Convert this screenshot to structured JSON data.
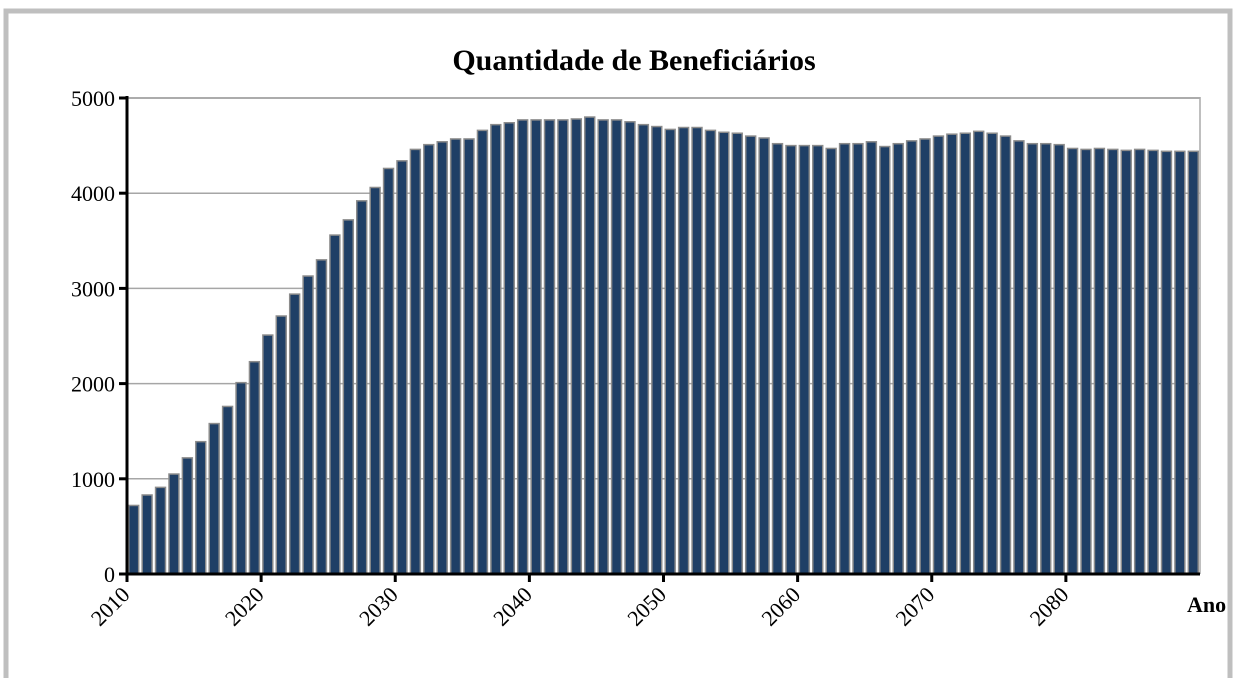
{
  "chart_data": {
    "type": "bar",
    "title": "Quantidade de Beneficiários",
    "x_label": "Ano",
    "categories": [
      "2010",
      null,
      null,
      null,
      null,
      null,
      null,
      null,
      null,
      null,
      "2020",
      null,
      null,
      null,
      null,
      null,
      null,
      null,
      null,
      null,
      "2030",
      null,
      null,
      null,
      null,
      null,
      null,
      null,
      null,
      null,
      "2040",
      null,
      null,
      null,
      null,
      null,
      null,
      null,
      null,
      null,
      "2050",
      null,
      null,
      null,
      null,
      null,
      null,
      null,
      null,
      null,
      "2060",
      null,
      null,
      null,
      null,
      null,
      null,
      null,
      null,
      null,
      "2070",
      null,
      null,
      null,
      null,
      null,
      null,
      null,
      null,
      null,
      "2080",
      null,
      null,
      null,
      null,
      null,
      null,
      null,
      null,
      null
    ],
    "values": [
      720,
      830,
      910,
      1050,
      1220,
      1390,
      1580,
      1760,
      2010,
      2230,
      2510,
      2710,
      2940,
      3130,
      3300,
      3560,
      3720,
      3920,
      4060,
      4260,
      4340,
      4460,
      4510,
      4540,
      4570,
      4570,
      4660,
      4720,
      4740,
      4770,
      4770,
      4770,
      4770,
      4780,
      4800,
      4770,
      4770,
      4750,
      4720,
      4700,
      4670,
      4690,
      4690,
      4660,
      4640,
      4630,
      4600,
      4580,
      4520,
      4500,
      4500,
      4500,
      4470,
      4520,
      4520,
      4540,
      4490,
      4520,
      4550,
      4570,
      4600,
      4620,
      4630,
      4650,
      4630,
      4600,
      4550,
      4520,
      4520,
      4510,
      4470,
      4460,
      4470,
      4460,
      4450,
      4460,
      4450,
      4440,
      4440,
      4440
    ],
    "color": "#1f3f66",
    "ylim": [
      0,
      5000
    ],
    "yticks": [
      0,
      1000,
      2000,
      3000,
      4000,
      5000
    ],
    "grid": true
  }
}
